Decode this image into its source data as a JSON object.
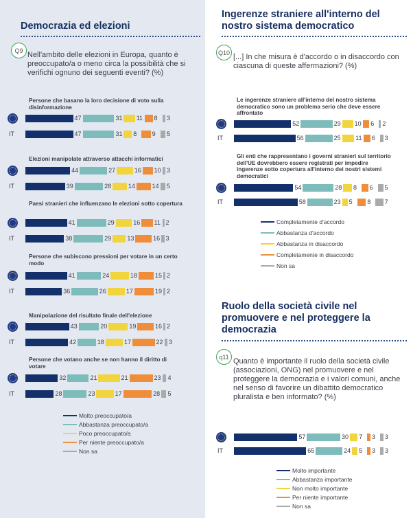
{
  "colors": [
    "#14306b",
    "#7dbcba",
    "#f2d43c",
    "#ef8d3a",
    "#aaaaaa"
  ],
  "left": {
    "title": "Democrazia ed elezioni",
    "qnum": "Q9",
    "question": "Nell'ambito delle elezioni in Europa, quanto è preoccupato/a o meno circa la possibilità che si verifichi ognuno dei seguenti eventi? (%)",
    "legend": [
      "Molto preoccupato/a",
      "Abbastanza preoccupato/a",
      "Poco preoccupato/a",
      "Per niente preoccupato/a",
      "Non sa"
    ]
  },
  "right": {
    "title": "Ingerenze straniere all'interno del nostro sistema democratico",
    "qnum": "Q10",
    "question": "[...] In che misura è d'accordo o in disaccordo con ciascuna di queste affermazioni? (%)",
    "legend": [
      "Completamente d'accordo",
      "Abbastanza d'accordo",
      "Abbastanza in disaccordo",
      "Completamente in disaccordo",
      "Non sa"
    ],
    "title2": "Ruolo della società civile nel promuovere e nel proteggere la democrazia",
    "qnum2": "q11",
    "question2": "Quanto è importante il ruolo della società civile (associazioni, ONG) nel promuovere e nel proteggere la democrazia e i valori comuni, anche nel senso di favorire un dibattito democratico pluralista e ben informato? (%)",
    "legend2": [
      "Molto importante",
      "Abbastanza importante",
      "Non molto importante",
      "Per niente importante",
      "Non sa"
    ]
  },
  "row_labels": {
    "eu": "EU",
    "it": "IT"
  },
  "chart_data": [
    {
      "type": "bar",
      "stacked": true,
      "orientation": "horizontal",
      "question": "Q9",
      "series_names": [
        "Molto preoccupato/a",
        "Abbastanza preoccupato/a",
        "Poco preoccupato/a",
        "Per niente preoccupato/a",
        "Non sa"
      ],
      "items": [
        {
          "label": "Persone che basano la loro decisione di voto sulla disinformazione",
          "eu": [
            47,
            31,
            11,
            8,
            3
          ],
          "it": [
            47,
            31,
            8,
            9,
            5
          ]
        },
        {
          "label": "Elezioni manipolate attraverso attacchi informatici",
          "eu": [
            44,
            27,
            16,
            10,
            3
          ],
          "it": [
            39,
            28,
            14,
            14,
            5
          ]
        },
        {
          "label": "Paesi stranieri che influenzano le elezioni sotto copertura",
          "eu": [
            41,
            29,
            16,
            11,
            2
          ],
          "it": [
            38,
            29,
            13,
            16,
            3
          ]
        },
        {
          "label": "Persone che subiscono pressioni per votare in un certo modo",
          "eu": [
            41,
            24,
            18,
            15,
            2
          ],
          "it": [
            36,
            26,
            17,
            19,
            2
          ]
        },
        {
          "label": "Manipolazione del risultato finale dell'elezione",
          "eu": [
            43,
            20,
            19,
            16,
            2
          ],
          "it": [
            42,
            18,
            17,
            22,
            3
          ]
        },
        {
          "label": "Persone che votano anche se non hanno il diritto di votare",
          "eu": [
            32,
            21,
            21,
            23,
            4
          ],
          "it": [
            28,
            23,
            17,
            28,
            5
          ]
        }
      ]
    },
    {
      "type": "bar",
      "stacked": true,
      "orientation": "horizontal",
      "question": "Q10",
      "series_names": [
        "Completamente d'accordo",
        "Abbastanza d'accordo",
        "Abbastanza in disaccordo",
        "Completamente in disaccordo",
        "Non sa"
      ],
      "items": [
        {
          "label": "Le ingerenze straniere all'interno del nostro sistema democratico sono un problema serio che deve essere affrontato",
          "eu": [
            52,
            29,
            10,
            6,
            2
          ],
          "it": [
            56,
            25,
            11,
            6,
            3
          ]
        },
        {
          "label": "Gli enti che rappresentano i governi stranieri sul territorio dell'UE dovrebbero essere registrati per impedire ingerenze sotto copertura all'interno dei nostri sistemi democratici",
          "eu": [
            54,
            28,
            8,
            6,
            5
          ],
          "it": [
            58,
            23,
            5,
            8,
            7
          ]
        }
      ]
    },
    {
      "type": "bar",
      "stacked": true,
      "orientation": "horizontal",
      "question": "q11",
      "series_names": [
        "Molto importante",
        "Abbastanza importante",
        "Non molto importante",
        "Per niente importante",
        "Non sa"
      ],
      "items": [
        {
          "label": "",
          "eu": [
            57,
            30,
            7,
            3,
            3
          ],
          "it": [
            65,
            24,
            5,
            3,
            3
          ]
        }
      ]
    }
  ]
}
